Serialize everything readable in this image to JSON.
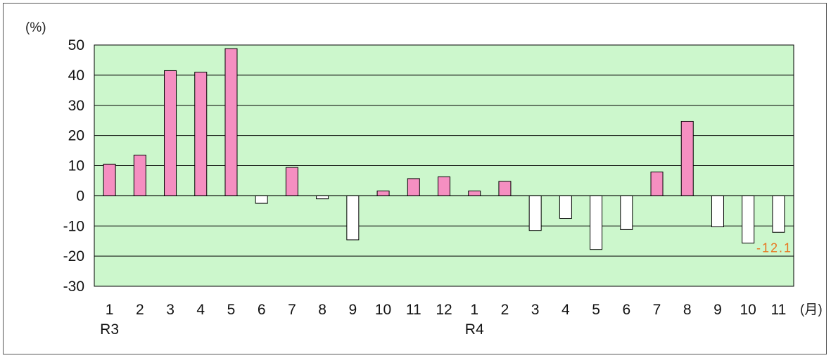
{
  "chart_data": {
    "type": "bar",
    "y_unit": "(%)",
    "x_unit": "(月)",
    "categories": [
      "1",
      "2",
      "3",
      "4",
      "5",
      "6",
      "7",
      "8",
      "9",
      "10",
      "11",
      "12",
      "1",
      "2",
      "3",
      "4",
      "5",
      "6",
      "7",
      "8",
      "9",
      "10",
      "11"
    ],
    "year_labels": [
      {
        "index": 0,
        "text": "R3"
      },
      {
        "index": 12,
        "text": "R4"
      }
    ],
    "values": [
      10.5,
      13.5,
      41.5,
      41.0,
      48.8,
      -2.5,
      9.4,
      -1.0,
      -14.6,
      1.6,
      5.7,
      6.3,
      1.6,
      4.8,
      -11.5,
      -7.5,
      -17.8,
      -11.2,
      7.9,
      24.7,
      -10.3,
      -15.7,
      -12.1
    ],
    "data_labels": [
      {
        "index": 22,
        "text": "-12.1"
      }
    ],
    "ylim": [
      -30,
      50
    ],
    "yticks": [
      50,
      40,
      30,
      20,
      10,
      0,
      -10,
      -20,
      -30
    ],
    "colors": {
      "positive_fill": "#f58fc1",
      "negative_fill": "#ffffff",
      "bar_stroke": "#000000",
      "plot_bg": "#ccf7cc",
      "grid": "#000000",
      "data_label": "#e8741e"
    },
    "grid": true,
    "legend": false
  }
}
